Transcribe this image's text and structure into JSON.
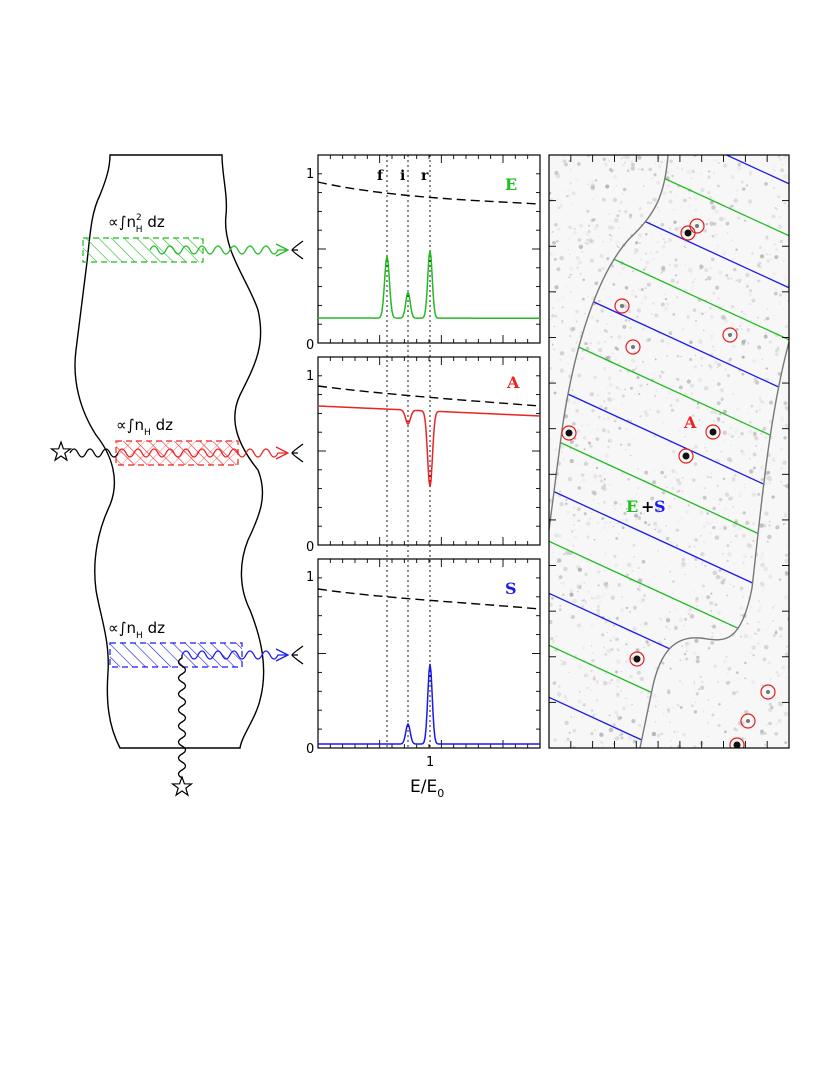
{
  "colors": {
    "emission": "#22bb22",
    "absorption": "#ee2222",
    "scattering": "#1a1aee",
    "ink": "#000000",
    "boundary": "#777777",
    "circle": "#e02020"
  },
  "left_panel": {
    "labels": {
      "top": "∝∫n²H dz",
      "top_main": "∝∫n",
      "top_sup": "2",
      "top_sub": "H",
      "top_tail": " dz",
      "mid_main": "∝∫n",
      "mid_sub": "H",
      "mid_tail": " dz",
      "bot_main": "∝∫n",
      "bot_sub": "H",
      "bot_tail": " dz"
    },
    "icons": [
      "star-icon",
      "eye-icon",
      "wavy-arrow-icon"
    ]
  },
  "spectra": {
    "line_labels": [
      "f",
      "i",
      "r"
    ],
    "panels": [
      {
        "id": "E",
        "label": "E",
        "color_key": "emission"
      },
      {
        "id": "A",
        "label": "A",
        "color_key": "absorption"
      },
      {
        "id": "S",
        "label": "S",
        "color_key": "scattering"
      }
    ],
    "tick_one": "1",
    "tick_zero": "0",
    "x_tick": "1",
    "x_label_main": "E/E",
    "x_label_sub": "0"
  },
  "map_panel": {
    "label_A": "A",
    "label_E": "E",
    "label_plus": "+",
    "label_S": "S"
  }
}
